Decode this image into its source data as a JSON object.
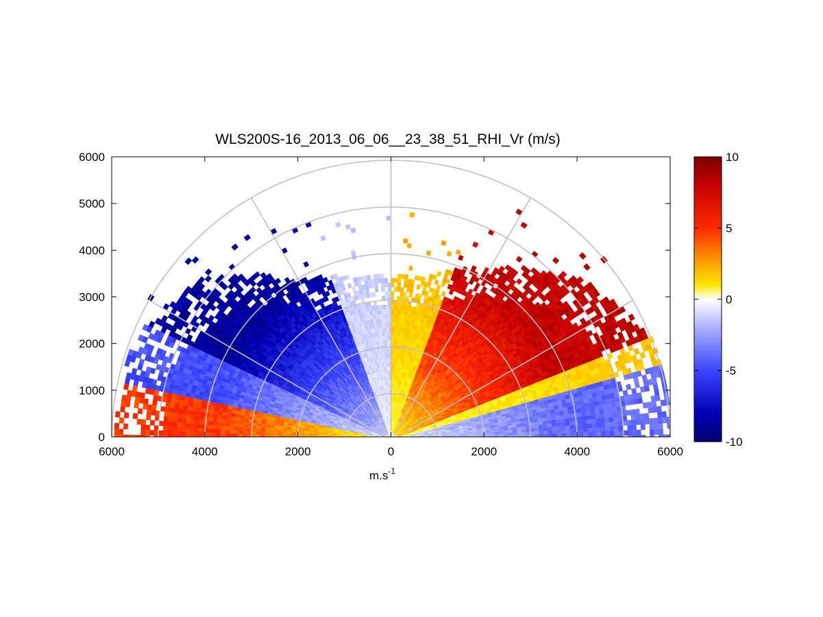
{
  "chart_data": {
    "type": "heatmap",
    "subtype": "polar-rhi",
    "title": "WLS200S-16_2013_06_06__23_38_51_RHI_Vr (m/s)",
    "xlabel": "m.s",
    "xlabel_superscript": "-1",
    "ylabel": "",
    "xlim": [
      -6000,
      6000
    ],
    "ylim": [
      0,
      6000
    ],
    "x_tick_values": [
      -6000,
      -4000,
      -2000,
      0,
      2000,
      4000,
      6000
    ],
    "x_tick_labels": [
      "6000",
      "4000",
      "2000",
      "0",
      "2000",
      "4000",
      "6000"
    ],
    "y_tick_values": [
      0,
      1000,
      2000,
      3000,
      4000,
      5000,
      6000
    ],
    "y_tick_labels": [
      "0",
      "1000",
      "2000",
      "3000",
      "4000",
      "5000",
      "6000"
    ],
    "polar_rings": [
      1000,
      2000,
      3000,
      4000,
      5000,
      6000
    ],
    "polar_spokes_deg": [
      0,
      30,
      60,
      90,
      120,
      150,
      180
    ],
    "grid": true,
    "colorbar": {
      "min": -10,
      "max": 10,
      "ticks": [
        10,
        5,
        0,
        -5,
        -10
      ],
      "tick_labels": [
        "10",
        "5",
        "0",
        "-5",
        "-10"
      ],
      "colormap": "blue-white-yellow-red"
    },
    "velocity_field": {
      "description": "Radial velocity Vr (m/s) as a function of range and elevation angle",
      "sectors": [
        {
          "elevation_range_deg": [
            90,
            110
          ],
          "velocity_ms": -1.0
        },
        {
          "elevation_range_deg": [
            110,
            155
          ],
          "velocity_ms": -5.5
        },
        {
          "elevation_range_deg": [
            155,
            168
          ],
          "velocity_ms": -3.0
        },
        {
          "elevation_range_deg": [
            168,
            180
          ],
          "velocity_ms": 3.0
        },
        {
          "elevation_range_deg": [
            70,
            90
          ],
          "velocity_ms": 1.5
        },
        {
          "elevation_range_deg": [
            22,
            70
          ],
          "velocity_ms": 5.0
        },
        {
          "elevation_range_deg": [
            15,
            22
          ],
          "velocity_ms": 1.0
        },
        {
          "elevation_range_deg": [
            0,
            15
          ],
          "velocity_ms": -2.5
        }
      ],
      "max_range_m": [
        {
          "elevation_deg": 160,
          "range_m": 5900
        },
        {
          "elevation_deg": 140,
          "range_m": 5300
        },
        {
          "elevation_deg": 120,
          "range_m": 3900
        },
        {
          "elevation_deg": 100,
          "range_m": 3500
        },
        {
          "elevation_deg": 80,
          "range_m": 3500
        },
        {
          "elevation_deg": 60,
          "range_m": 4200
        },
        {
          "elevation_deg": 40,
          "range_m": 5300
        },
        {
          "elevation_deg": 20,
          "range_m": 6000
        }
      ]
    }
  }
}
